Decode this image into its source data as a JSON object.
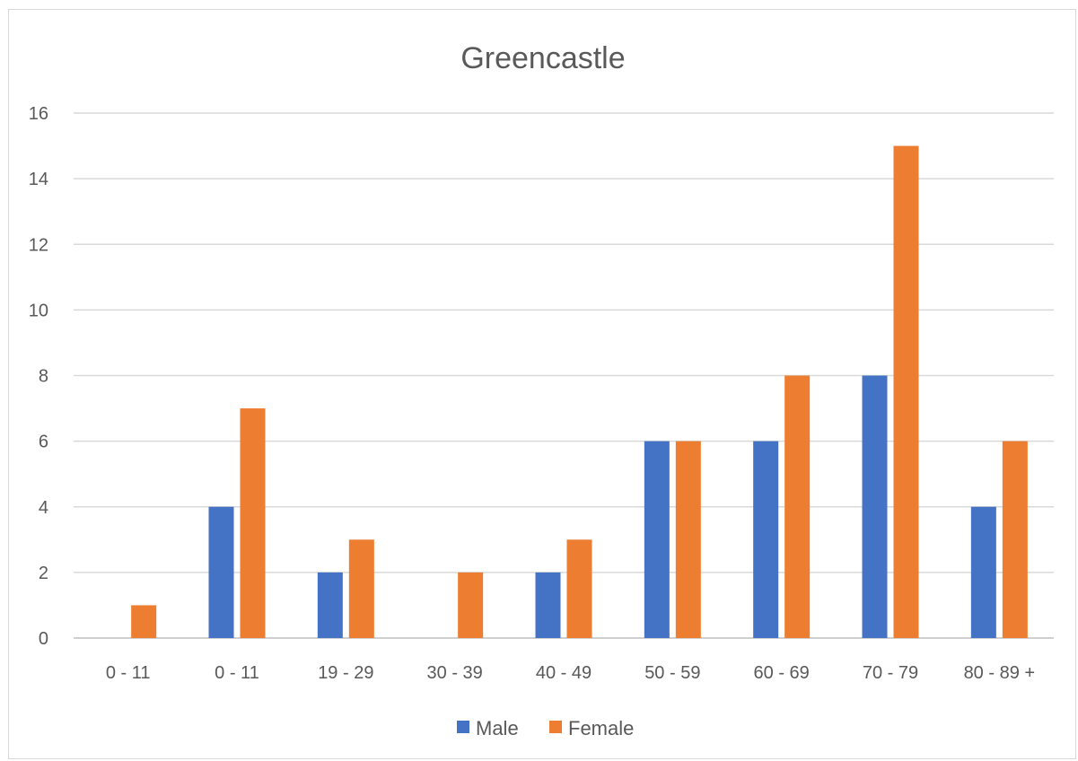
{
  "chart_data": {
    "type": "bar",
    "title": "Greencastle",
    "categories": [
      "0 - 11",
      "0 - 11",
      "19 - 29",
      "30 - 39",
      "40 - 49",
      "50 - 59",
      "60 - 69",
      "70 - 79",
      "80 - 89 +"
    ],
    "series": [
      {
        "name": "Male",
        "values": [
          0,
          4,
          2,
          0,
          2,
          6,
          6,
          8,
          4
        ],
        "color": "#4472C4"
      },
      {
        "name": "Female",
        "values": [
          1,
          7,
          3,
          2,
          3,
          6,
          8,
          15,
          6
        ],
        "color": "#ED7D31"
      }
    ],
    "ylim": [
      0,
      16
    ],
    "yticks": [
      "0",
      "2",
      "4",
      "6",
      "8",
      "10",
      "12",
      "14",
      "16"
    ],
    "grid": true,
    "legend": "bottom"
  }
}
